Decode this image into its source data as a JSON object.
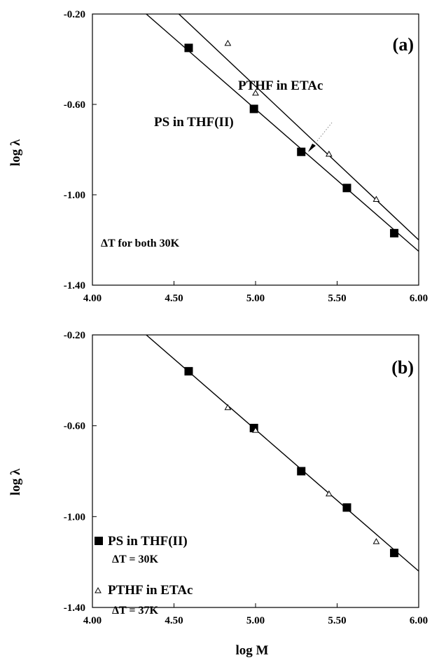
{
  "chart_data": [
    {
      "type": "line",
      "panel_label": "(a)",
      "xlabel": "",
      "ylabel": "log λ",
      "xlim": [
        4.0,
        6.0
      ],
      "ylim": [
        -1.4,
        -0.2
      ],
      "x_ticks": [
        "4.00",
        "4.50",
        "5.00",
        "5.50",
        "6.00"
      ],
      "y_ticks": [
        "-0.20",
        "-0.60",
        "-1.00",
        "-1.40"
      ],
      "series": [
        {
          "name": "PS in THF(II)",
          "marker": "filled-square",
          "x": [
            4.59,
            4.99,
            5.28,
            5.56,
            5.85
          ],
          "y": [
            -0.35,
            -0.62,
            -0.81,
            -0.97,
            -1.17
          ]
        },
        {
          "name": "PTHF in ETAc",
          "marker": "open-triangle",
          "x": [
            4.83,
            5.0,
            5.45,
            5.74
          ],
          "y": [
            -0.33,
            -0.55,
            -0.82,
            -1.02
          ]
        }
      ],
      "fit_lines": [
        {
          "series": "PS in THF(II)",
          "x": [
            4.33,
            6.0
          ],
          "y": [
            -0.2,
            -1.25
          ]
        },
        {
          "series": "PTHF in ETAc",
          "x": [
            4.53,
            6.0
          ],
          "y": [
            -0.2,
            -1.2
          ]
        }
      ],
      "annotations": [
        "PTHF in ETAc",
        "PS in THF(II)",
        "ΔT for both 30K"
      ]
    },
    {
      "type": "line",
      "panel_label": "(b)",
      "xlabel": "log M",
      "ylabel": "log λ",
      "xlim": [
        4.0,
        6.0
      ],
      "ylim": [
        -1.4,
        -0.2
      ],
      "x_ticks": [
        "4.00",
        "4.50",
        "5.00",
        "5.50",
        "6.00"
      ],
      "y_ticks": [
        "-0.20",
        "-0.60",
        "-1.00",
        "-1.40"
      ],
      "series": [
        {
          "name": "PS in THF(II)",
          "marker": "filled-square",
          "x": [
            4.59,
            4.99,
            5.28,
            5.56,
            5.85
          ],
          "y": [
            -0.36,
            -0.61,
            -0.8,
            -0.96,
            -1.16
          ]
        },
        {
          "name": "PTHF in ETAc",
          "marker": "open-triangle",
          "x": [
            4.83,
            5.0,
            5.45,
            5.74
          ],
          "y": [
            -0.52,
            -0.62,
            -0.9,
            -1.11
          ]
        }
      ],
      "fit_lines": [
        {
          "series": "both",
          "x": [
            4.33,
            6.0
          ],
          "y": [
            -0.2,
            -1.24
          ]
        }
      ],
      "legend_position": "bottom-left",
      "legend": [
        {
          "label": "PS in THF(II)",
          "marker": "filled-square",
          "sublabel": "ΔT = 30K"
        },
        {
          "label": "PTHF in ETAc",
          "marker": "open-triangle",
          "sublabel": "ΔT = 37K"
        }
      ]
    }
  ]
}
